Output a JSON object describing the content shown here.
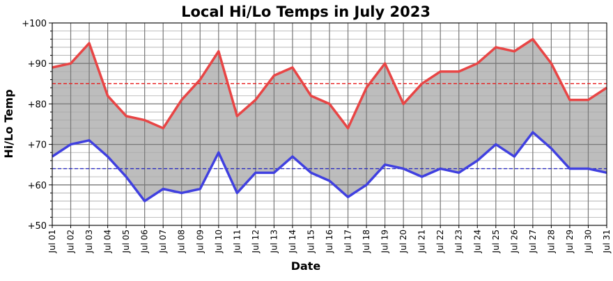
{
  "chart_data": {
    "type": "line",
    "title": "Local Hi/Lo Temps in July 2023",
    "x_label": "Date",
    "y_label": "Hi/Lo Temp",
    "categories": [
      "Jul 01",
      "Jul 02",
      "Jul 03",
      "Jul 04",
      "Jul 05",
      "Jul 06",
      "Jul 07",
      "Jul 08",
      "Jul 09",
      "Jul 10",
      "Jul 11",
      "Jul 12",
      "Jul 13",
      "Jul 14",
      "Jul 15",
      "Jul 16",
      "Jul 17",
      "Jul 18",
      "Jul 19",
      "Jul 20",
      "Jul 21",
      "Jul 22",
      "Jul 23",
      "Jul 24",
      "Jul 25",
      "Jul 26",
      "Jul 27",
      "Jul 28",
      "Jul 29",
      "Jul 30",
      "Jul 31"
    ],
    "series": [
      {
        "color": "#e84545",
        "values": [
          89,
          90,
          95,
          82,
          77,
          76,
          74,
          81,
          86,
          93,
          77,
          81,
          87,
          89,
          82,
          80,
          74,
          84,
          90,
          80,
          85,
          88,
          88,
          90,
          94,
          93,
          96,
          90,
          81,
          81,
          84
        ]
      },
      {
        "color": "#4040e0",
        "values": [
          67,
          70,
          71,
          67,
          62,
          56,
          59,
          58,
          59,
          68,
          58,
          63,
          63,
          67,
          63,
          61,
          57,
          60,
          65,
          64,
          62,
          64,
          63,
          66,
          70,
          67,
          73,
          69,
          64,
          64,
          63
        ]
      }
    ],
    "fill_between_color": "#bdbdbd",
    "reference_lines": [
      {
        "value": 85,
        "color": "#e82020"
      },
      {
        "value": 64,
        "color": "#2020c0"
      }
    ],
    "ylim": [
      50,
      100
    ],
    "yticks": [
      {
        "value": 50,
        "label": "+50"
      },
      {
        "value": 60,
        "label": "+60"
      },
      {
        "value": 70,
        "label": "+70"
      },
      {
        "value": 80,
        "label": "+80"
      },
      {
        "value": 90,
        "label": "+90"
      },
      {
        "value": 100,
        "label": "+100"
      }
    ],
    "yminor_ticks": [
      52,
      54,
      56,
      58,
      62,
      64,
      66,
      68,
      72,
      74,
      76,
      78,
      82,
      84,
      86,
      88,
      92,
      94,
      96,
      98
    ],
    "grid": true
  }
}
